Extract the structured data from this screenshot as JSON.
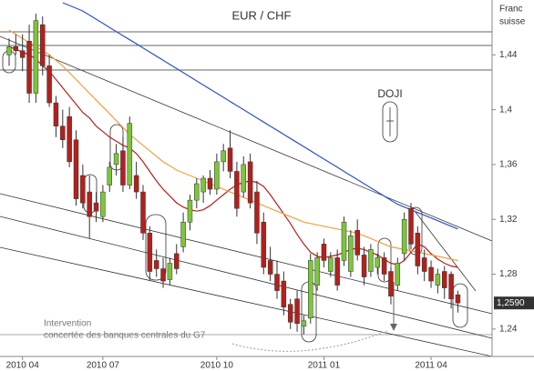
{
  "chart_data": {
    "type": "candlestick",
    "title": "EUR /  CHF",
    "axis_label": [
      "Franc",
      "suisse"
    ],
    "annotations": {
      "doji": "DOJI",
      "intervention": [
        "Intervention",
        "concertée des banques centrales du G7"
      ]
    },
    "categories": [
      null,
      null,
      "2010 04",
      null,
      null,
      null,
      null,
      null,
      null,
      null,
      null,
      null,
      null,
      null,
      "2010 07",
      null,
      null,
      null,
      null,
      null,
      null,
      null,
      null,
      null,
      null,
      null,
      null,
      null,
      null,
      null,
      null,
      "2010 10",
      null,
      null,
      null,
      null,
      null,
      null,
      null,
      null,
      null,
      null,
      null,
      null,
      null,
      null,
      null,
      "2011 01",
      null,
      null,
      null,
      null,
      null,
      null,
      null,
      null,
      null,
      null,
      null,
      null,
      null,
      null,
      null,
      "2011 04",
      null,
      null,
      null,
      null
    ],
    "open": [
      1.44,
      1.446,
      1.443,
      1.45,
      1.412,
      1.462,
      1.432,
      1.405,
      1.388,
      1.395,
      1.378,
      1.352,
      1.34,
      1.332,
      1.322,
      1.345,
      1.36,
      1.37,
      1.345,
      1.352,
      1.34,
      1.31,
      1.29,
      1.284,
      1.276,
      1.295,
      1.3,
      1.318,
      1.334,
      1.34,
      1.35,
      1.342,
      1.362,
      1.372,
      1.355,
      1.34,
      1.362,
      1.34,
      1.318,
      1.29,
      1.28,
      1.275,
      1.258,
      1.262,
      1.242,
      1.248,
      1.272,
      1.302,
      1.282,
      1.292,
      1.29,
      1.282,
      1.312,
      1.294,
      1.282,
      1.285,
      1.292,
      1.282,
      1.272,
      1.295,
      1.328,
      1.31,
      1.292,
      1.285,
      1.272,
      1.282,
      1.28,
      1.265
    ],
    "high": [
      1.452,
      1.455,
      1.455,
      1.462,
      1.47,
      1.468,
      1.44,
      1.41,
      1.4,
      1.402,
      1.385,
      1.36,
      1.352,
      1.34,
      1.345,
      1.362,
      1.375,
      1.38,
      1.395,
      1.362,
      1.345,
      1.315,
      1.298,
      1.292,
      1.292,
      1.302,
      1.325,
      1.338,
      1.35,
      1.352,
      1.356,
      1.368,
      1.375,
      1.385,
      1.362,
      1.366,
      1.368,
      1.348,
      1.325,
      1.3,
      1.29,
      1.282,
      1.262,
      1.268,
      1.25,
      1.295,
      1.296,
      1.306,
      1.296,
      1.298,
      1.322,
      1.312,
      1.32,
      1.3,
      1.302,
      1.295,
      1.296,
      1.285,
      1.292,
      1.325,
      1.332,
      1.315,
      1.298,
      1.29,
      1.284,
      1.286,
      1.282,
      1.268
    ],
    "low": [
      1.432,
      1.44,
      1.428,
      1.405,
      1.405,
      1.425,
      1.402,
      1.38,
      1.372,
      1.358,
      1.33,
      1.328,
      1.306,
      1.318,
      1.318,
      1.34,
      1.352,
      1.34,
      1.342,
      1.335,
      1.305,
      1.275,
      1.278,
      1.27,
      1.272,
      1.28,
      1.296,
      1.312,
      1.328,
      1.332,
      1.338,
      1.338,
      1.355,
      1.35,
      1.322,
      1.336,
      1.328,
      1.302,
      1.28,
      1.275,
      1.262,
      1.25,
      1.24,
      1.238,
      1.236,
      1.244,
      1.268,
      1.285,
      1.278,
      1.268,
      1.286,
      1.278,
      1.29,
      1.272,
      1.278,
      1.28,
      1.275,
      1.258,
      1.268,
      1.29,
      1.298,
      1.28,
      1.275,
      1.27,
      1.266,
      1.262,
      1.255,
      1.252
    ],
    "close": [
      1.446,
      1.443,
      1.438,
      1.412,
      1.465,
      1.432,
      1.405,
      1.388,
      1.378,
      1.362,
      1.335,
      1.332,
      1.322,
      1.326,
      1.34,
      1.358,
      1.368,
      1.345,
      1.39,
      1.34,
      1.31,
      1.282,
      1.284,
      1.275,
      1.288,
      1.284,
      1.318,
      1.334,
      1.346,
      1.35,
      1.342,
      1.362,
      1.37,
      1.355,
      1.328,
      1.36,
      1.332,
      1.31,
      1.285,
      1.28,
      1.268,
      1.256,
      1.245,
      1.244,
      1.246,
      1.29,
      1.292,
      1.29,
      1.292,
      1.272,
      1.318,
      1.308,
      1.294,
      1.278,
      1.298,
      1.292,
      1.28,
      1.264,
      1.288,
      1.32,
      1.302,
      1.286,
      1.282,
      1.275,
      1.28,
      1.27,
      1.262,
      1.259
    ],
    "up_color": "#7cc63a",
    "down_color": "#b3201c",
    "overlays": [
      {
        "color": "#b3201c",
        "values": [
          1.446,
          1.444,
          1.442,
          1.44,
          1.437,
          1.432,
          1.428,
          1.422,
          1.416,
          1.41,
          1.404,
          1.398,
          1.394,
          1.388,
          1.384,
          1.38,
          1.377,
          1.374,
          1.372,
          1.368,
          1.362,
          1.355,
          1.348,
          1.342,
          1.337,
          1.332,
          1.329,
          1.327,
          1.326,
          1.327,
          1.33,
          1.334,
          1.338,
          1.342,
          1.345,
          1.347,
          1.348,
          1.347,
          1.344,
          1.338,
          1.331,
          1.324,
          1.317,
          1.309,
          1.302,
          1.296,
          1.293,
          1.292,
          1.293,
          1.294,
          1.296,
          1.298,
          1.299,
          1.298,
          1.296,
          1.294,
          1.291,
          1.288,
          1.287,
          1.29,
          1.296,
          1.302,
          1.3,
          1.295,
          1.291,
          1.288,
          1.286,
          1.285
        ]
      },
      {
        "color": "#f0a040",
        "values": [
          1.458,
          1.455,
          1.452,
          1.449,
          1.446,
          1.443,
          1.44,
          1.436,
          1.432,
          1.427,
          1.422,
          1.417,
          1.412,
          1.407,
          1.402,
          1.397,
          1.392,
          1.387,
          1.382,
          1.378,
          1.374,
          1.37,
          1.366,
          1.362,
          1.359,
          1.356,
          1.354,
          1.352,
          1.35,
          1.348,
          1.346,
          1.344,
          1.342,
          1.34,
          1.338,
          1.336,
          1.334,
          1.332,
          1.33,
          1.328,
          1.326,
          1.324,
          1.322,
          1.32,
          1.318,
          1.317,
          1.316,
          1.315,
          1.314,
          1.313,
          1.312,
          1.311,
          1.31,
          1.308,
          1.306,
          1.304,
          1.302,
          1.3,
          1.299,
          1.298,
          1.297,
          1.296,
          1.295,
          1.294,
          1.293,
          1.292,
          1.291,
          1.29
        ]
      },
      {
        "color": "#2a52c8",
        "values": [
          null,
          null,
          null,
          null,
          null,
          null,
          null,
          null,
          1.478,
          1.476,
          1.474,
          1.472,
          1.469,
          1.466,
          1.463,
          1.46,
          1.457,
          1.454,
          1.451,
          1.448,
          1.445,
          1.442,
          1.439,
          1.436,
          1.433,
          1.43,
          1.427,
          1.424,
          1.421,
          1.418,
          1.415,
          1.412,
          1.409,
          1.406,
          1.403,
          1.4,
          1.397,
          1.394,
          1.391,
          1.388,
          1.385,
          1.382,
          1.379,
          1.376,
          1.373,
          1.37,
          1.367,
          1.364,
          1.361,
          1.358,
          1.355,
          1.352,
          1.349,
          1.346,
          1.343,
          1.34,
          1.337,
          1.334,
          1.331,
          1.329,
          1.327,
          1.325,
          1.323,
          1.321,
          1.319,
          1.317,
          1.315,
          1.313
        ]
      }
    ],
    "last_price": {
      "value": 1.259,
      "label": "1,2590"
    },
    "ylim": [
      1.22,
      1.48
    ],
    "yticks": [
      {
        "value": 1.24,
        "label": "1,24"
      },
      {
        "value": 1.28,
        "label": "1,28"
      },
      {
        "value": 1.32,
        "label": "1,32"
      },
      {
        "value": 1.36,
        "label": "1,36"
      },
      {
        "value": 1.4,
        "label": "1,4"
      },
      {
        "value": 1.44,
        "label": "1,44"
      }
    ]
  }
}
